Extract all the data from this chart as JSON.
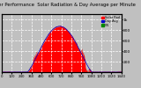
{
  "title": "Solar PV/Inverter Performance  Solar Radiation & Day Average per Minute",
  "title_fontsize": 3.8,
  "bg_color": "#c0c0c0",
  "plot_bg_color": "#c0c0c0",
  "fill_color": "#ff0000",
  "line_color": "#dd0000",
  "grid_color": "#ffffff",
  "legend_items": [
    {
      "label": "Solar Rad",
      "color": "#ff0000"
    },
    {
      "label": "Day Avg",
      "color": "#0000cc"
    },
    {
      "label": "VN",
      "color": "#008800"
    }
  ],
  "ylim": [
    0,
    1100
  ],
  "yticks_right": [
    200,
    400,
    600,
    800,
    1000
  ],
  "xlim": [
    0,
    1440
  ],
  "xlabel_fontsize": 2.8,
  "ylabel_fontsize": 3.2
}
